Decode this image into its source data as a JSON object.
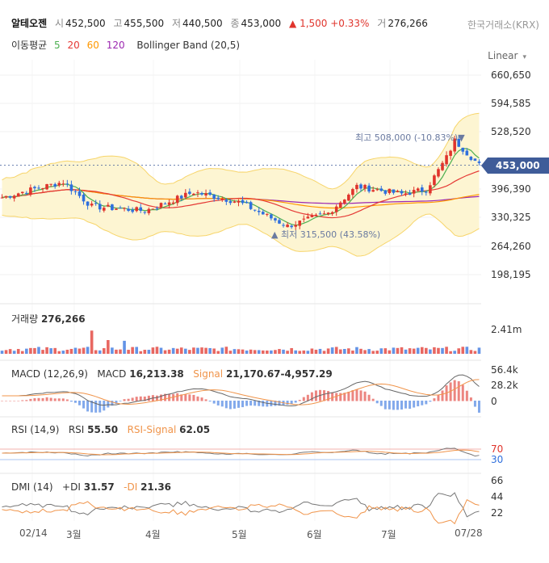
{
  "header": {
    "name": "알테오젠",
    "open_label": "시",
    "open": "452,500",
    "high_label": "고",
    "high": "455,500",
    "low_label": "저",
    "low": "440,500",
    "close_label": "종",
    "close": "453,000",
    "change_arrow": "▲",
    "change": "1,500",
    "change_pct": "+0.33%",
    "volume_label": "거",
    "volume": "276,266",
    "exchange": "한국거래소(KRX)"
  },
  "overlay": {
    "label": "이동평균",
    "ma5": "5",
    "ma20": "20",
    "ma60": "60",
    "ma120": "120",
    "bb": "Bollinger Band (20,5)"
  },
  "scale_mode": "Linear",
  "current_price": "453,000",
  "colors": {
    "up": "#e0342c",
    "down": "#2f6fdd",
    "ma5": "#4caf50",
    "ma20": "#e53935",
    "ma60": "#ff9800",
    "ma120": "#9c27b0",
    "bb_fill": "#fdf5d2",
    "bb_line": "#f7d56b",
    "macd": "#666666",
    "signal": "#f0944a",
    "tag": "#3f5c99"
  },
  "annotations": {
    "high": "최고 508,000 (-10.83%)▼",
    "low": "▲ 최저 315,500 (43.58%)"
  },
  "price_axis": [
    "660,650",
    "594,585",
    "528,520",
    "396,390",
    "330,325",
    "264,260",
    "198,195"
  ],
  "x_axis": [
    "02/14",
    "3월",
    "4월",
    "5월",
    "6월",
    "7월",
    "07/28"
  ],
  "panels": {
    "volume": {
      "label": "거래량",
      "value": "276,266",
      "ticks": [
        "2.41m"
      ]
    },
    "macd": {
      "label": "MACD (12,26,9)",
      "macd_label": "MACD",
      "macd_value": "16,213.38",
      "signal_label": "Signal",
      "signal_value": "21,170.67",
      "hist_value": "-4,957.29",
      "ticks": [
        "56.4k",
        "28.2k",
        "0"
      ]
    },
    "rsi": {
      "label": "RSI (14,9)",
      "rsi_label": "RSI",
      "rsi_value": "55.50",
      "signal_label": "RSI-Signal",
      "signal_value": "62.05",
      "ticks": [
        "70",
        "30"
      ]
    },
    "dmi": {
      "label": "DMI (14)",
      "pdi_label": "+DI",
      "pdi_value": "31.57",
      "mdi_label": "-DI",
      "mdi_value": "21.36",
      "ticks": [
        "66",
        "44",
        "22"
      ]
    }
  },
  "chart_data": {
    "type": "line",
    "title": "알테오젠",
    "ylim": [
      170000,
      690000
    ],
    "anchors": [
      {
        "x": "02/14",
        "close": 380000
      },
      {
        "x": "02-22",
        "close": 395000
      },
      {
        "x": "03-06",
        "close": 415000
      },
      {
        "x": "03-15",
        "close": 360000
      },
      {
        "x": "04-02",
        "close": 350000
      },
      {
        "x": "04-18",
        "close": 392000
      },
      {
        "x": "05-03",
        "close": 370000
      },
      {
        "x": "05-20",
        "close": 315500
      },
      {
        "x": "06-03",
        "close": 345000
      },
      {
        "x": "06-12",
        "close": 405000
      },
      {
        "x": "06-28",
        "close": 388000
      },
      {
        "x": "07-08",
        "close": 398000
      },
      {
        "x": "07-17",
        "close": 470000
      },
      {
        "x": "07-22",
        "close": 508000
      },
      {
        "x": "07/28",
        "close": 453000
      }
    ],
    "high": {
      "value": 508000,
      "change_pct": -10.83
    },
    "low": {
      "value": 315500,
      "change_pct": 43.58
    }
  }
}
